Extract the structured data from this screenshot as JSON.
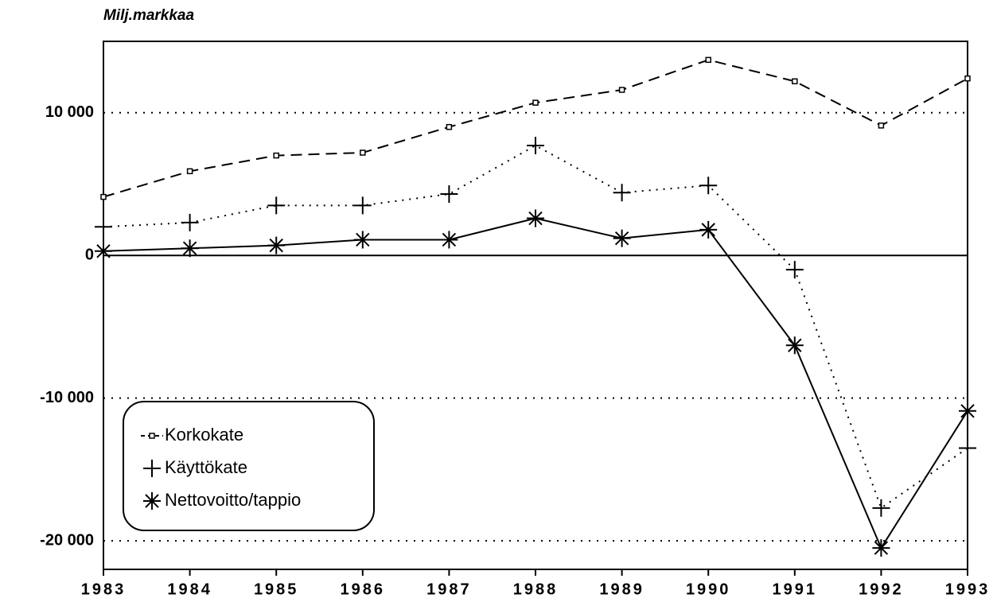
{
  "chart_data": {
    "type": "line",
    "title": "Milj.markkaa",
    "x": [
      1983,
      1984,
      1985,
      1986,
      1987,
      1988,
      1989,
      1990,
      1991,
      1992,
      1993
    ],
    "series": [
      {
        "name": "Korkokate",
        "color": "#000000",
        "line_style": "dashed",
        "marker": "square",
        "values": [
          4100,
          5900,
          7000,
          7200,
          9000,
          10700,
          11600,
          13700,
          12200,
          9100,
          12400
        ]
      },
      {
        "name": "Käyttökate",
        "color": "#000000",
        "line_style": "dotted",
        "marker": "plus",
        "values": [
          2000,
          2300,
          3500,
          3500,
          4300,
          7700,
          4400,
          4900,
          -1000,
          -17700,
          -13500
        ]
      },
      {
        "name": "Nettovoitto/tappio",
        "color": "#000000",
        "line_style": "solid",
        "marker": "asterisk",
        "values": [
          300,
          500,
          700,
          1100,
          1100,
          2600,
          1200,
          1800,
          -6300,
          -20500,
          -10900
        ]
      }
    ],
    "xlim": [
      1983,
      1993
    ],
    "xticks": [
      1983,
      1984,
      1985,
      1986,
      1987,
      1988,
      1989,
      1990,
      1991,
      1992,
      1993
    ],
    "ylim": [
      -22000,
      15000
    ],
    "yticks": [
      {
        "value": -20000,
        "label": "-20 000"
      },
      {
        "value": -10000,
        "label": "-10 000"
      },
      0,
      {
        "value": 10000,
        "label": "10 000"
      }
    ],
    "grid": true,
    "legend": "lower left"
  }
}
